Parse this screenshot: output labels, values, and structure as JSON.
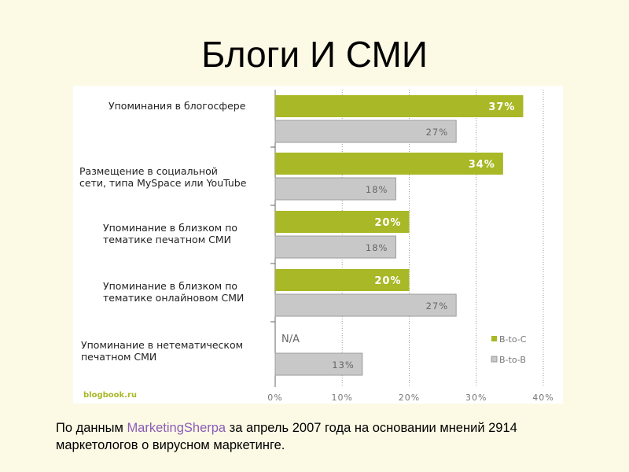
{
  "slide": {
    "title": "Блоги И СМИ"
  },
  "watermark": "blogbook.ru",
  "caption": {
    "prefix": "По данным ",
    "source": "MarketingSherpa",
    "suffix": " за апрель 2007 года на основании мнений 2914 маркетологов о вирусном маркетинге."
  },
  "colors": {
    "background": "#fcfae4",
    "b2c": "#a8b826",
    "b2b": "#c8c8c8",
    "source_link": "#8b5cb8"
  },
  "chart_data": {
    "type": "bar",
    "orientation": "horizontal",
    "categories": [
      "Упоминания в блогосфере",
      "Размещение в социальной сети, типа MySpace или YouTube",
      "Упоминание в близком по тематике печатном СМИ",
      "Упоминание в близком по тематике онлайновом СМИ",
      "Упоминание в нетематическом печатном СМИ"
    ],
    "category_lines": [
      [
        "Упоминания в блогосфере"
      ],
      [
        "Размещение в социальной",
        "сети, типа MySpace или YouTube"
      ],
      [
        "Упоминание в близком по",
        "тематике печатном СМИ"
      ],
      [
        "Упоминание в близком по",
        "тематике онлайновом СМИ"
      ],
      [
        "Упоминание в нетематическом",
        "печатном СМИ"
      ]
    ],
    "series": [
      {
        "name": "B-to-C",
        "values": [
          37,
          34,
          20,
          20,
          null
        ],
        "labels": [
          "37%",
          "34%",
          "20%",
          "20%",
          "N/A"
        ],
        "color": "#a8b826"
      },
      {
        "name": "B-to-B",
        "values": [
          27,
          18,
          18,
          27,
          13
        ],
        "labels": [
          "27%",
          "18%",
          "18%",
          "27%",
          "13%"
        ],
        "color": "#c8c8c8"
      }
    ],
    "xlim": [
      0,
      40
    ],
    "xticks": [
      "0%",
      "10%",
      "20%",
      "30%",
      "40%"
    ],
    "grid": true,
    "legend": "bottom-right"
  }
}
